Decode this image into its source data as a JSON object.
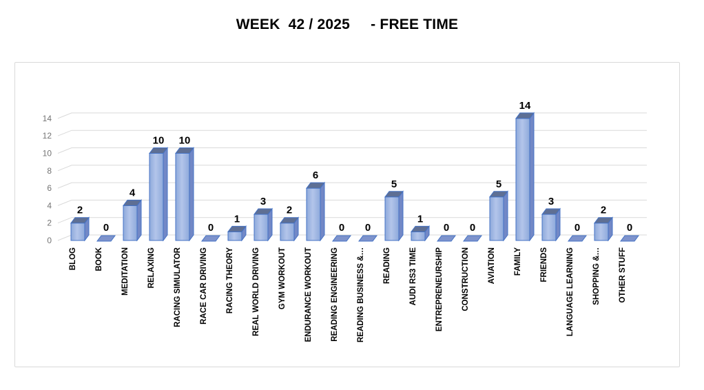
{
  "chart_data": {
    "type": "bar",
    "style_3d": true,
    "title": "WEEK  42 / 2025     - FREE TIME",
    "categories": [
      "BLOG",
      "BOOK",
      "MEDITATION",
      "RELAXING",
      "RACING SIMULATOR",
      "RACE CAR DRIVING",
      "RACING THEORY",
      "REAL WORLD DRIVING",
      "GYM WORKOUT",
      "ENDURANCE WORKOUT",
      "READING ENGINEERING",
      "READING BUSINESS &…",
      "READING",
      "AUDI RS3 TIME",
      "ENTREPRENEURSHIP",
      "CONSTRUCTION",
      "AVIATION",
      "FAMILY",
      "FRIENDS",
      "LANGUAGE LEARNING",
      "SHOPPING &…",
      "OTHER STUFF"
    ],
    "values": [
      2,
      0,
      4,
      10,
      10,
      0,
      1,
      3,
      2,
      6,
      0,
      0,
      5,
      1,
      0,
      0,
      5,
      14,
      3,
      0,
      2,
      0
    ],
    "data_labels": true,
    "xlabel": "",
    "ylabel": "",
    "ylim": [
      0,
      14
    ],
    "ytick_step": 2,
    "yticks": [
      0,
      2,
      4,
      6,
      8,
      10,
      12,
      14
    ],
    "grid": true,
    "legend": "none",
    "colors": {
      "bar_front": "#8EA9DB",
      "bar_front_highlight": "#B3C5EA",
      "bar_side": "#7288C6",
      "bar_top": "#5E6F94",
      "bar_border": "#4472C4",
      "zero_bar": "#7E93CC",
      "gridline": "#D9D9D9",
      "axis_text": "#737373",
      "label_text": "#000000",
      "card_border": "#D9D9D9"
    }
  }
}
